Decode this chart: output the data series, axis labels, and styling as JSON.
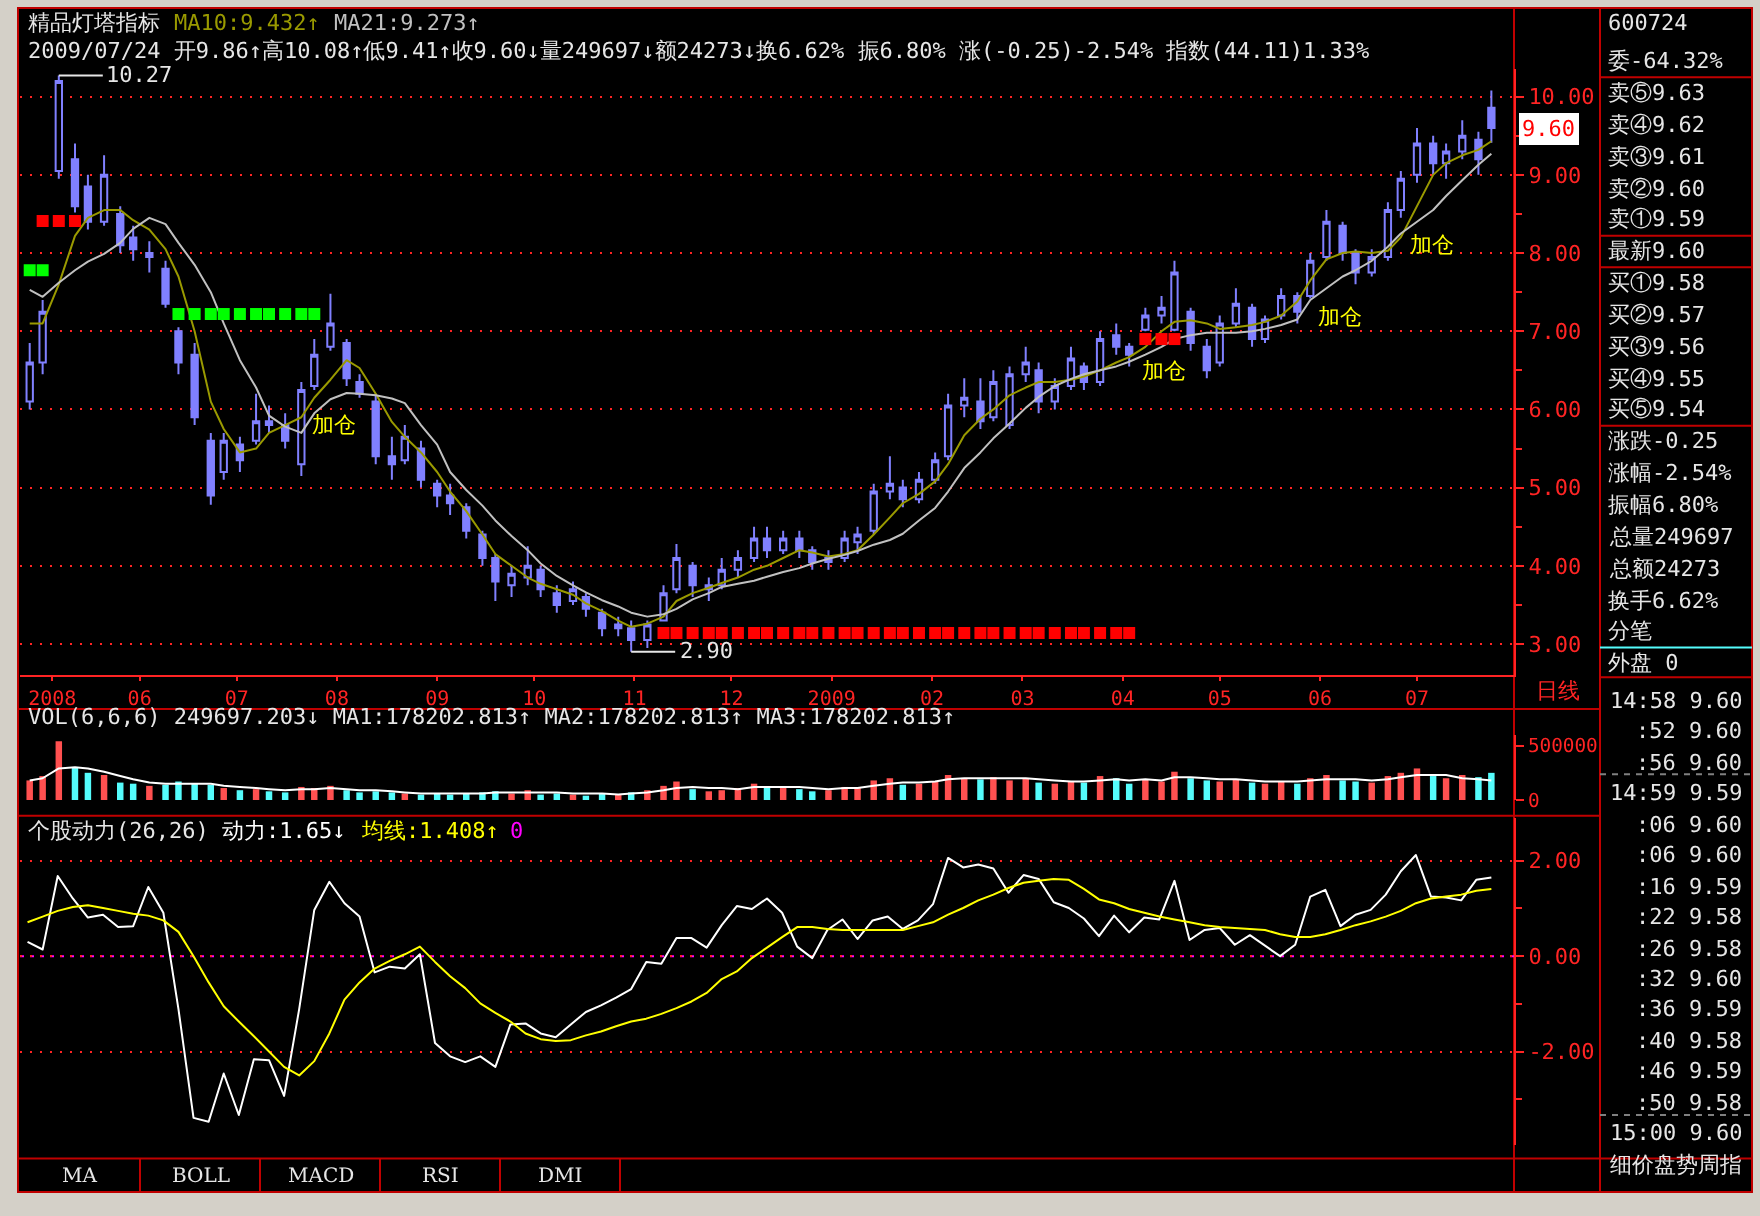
{
  "chart_data": [
    {
      "type": "candlestick",
      "title": "精品灯塔指标",
      "subtitle": "2009/07/24 开9.86↑高10.08↑低9.41↑收9.60↓量249697↓额24273↓换6.62% 振6.80% 涨(-0.25)-2.54% 指数(44.11)1.33%",
      "x": [
        "2008-04-28",
        "2008-05-02",
        "2008-05-07",
        "2008-05-12",
        "2008-05-16",
        "2008-05-21",
        "2008-05-26",
        "2008-05-30",
        "2008-06-04",
        "2008-06-09",
        "2008-06-13",
        "2008-06-18",
        "2008-06-23",
        "2008-06-27",
        "2008-07-02",
        "2008-07-07",
        "2008-07-11",
        "2008-07-16",
        "2008-07-21",
        "2008-07-25",
        "2008-07-30",
        "2008-08-04",
        "2008-08-08",
        "2008-08-13",
        "2008-08-18",
        "2008-08-22",
        "2008-08-27",
        "2008-09-01",
        "2008-09-05",
        "2008-09-10",
        "2008-09-15",
        "2008-09-19",
        "2008-09-24",
        "2008-09-29",
        "2008-10-03",
        "2008-10-08",
        "2008-10-13",
        "2008-10-17",
        "2008-10-22",
        "2008-10-27",
        "2008-10-31",
        "2008-11-05",
        "2008-11-10",
        "2008-11-14",
        "2008-11-19",
        "2008-11-24",
        "2008-11-28",
        "2008-12-03",
        "2008-12-08",
        "2008-12-12",
        "2008-12-17",
        "2008-12-22",
        "2008-12-26",
        "2008-12-31",
        "2009-01-05",
        "2009-01-09",
        "2009-01-14",
        "2009-01-19",
        "2009-01-23",
        "2009-01-28",
        "2009-02-02",
        "2009-02-06",
        "2009-02-11",
        "2009-02-16",
        "2009-02-20",
        "2009-02-25",
        "2009-03-02",
        "2009-03-06",
        "2009-03-11",
        "2009-03-16",
        "2009-03-20",
        "2009-03-25",
        "2009-03-30",
        "2009-04-03",
        "2009-04-08",
        "2009-04-13",
        "2009-04-17",
        "2009-04-22",
        "2009-04-27",
        "2009-05-01",
        "2009-05-06",
        "2009-05-11",
        "2009-05-15",
        "2009-05-20",
        "2009-05-25",
        "2009-05-29",
        "2009-06-03",
        "2009-06-08",
        "2009-06-12",
        "2009-06-17",
        "2009-06-22",
        "2009-06-26",
        "2009-07-01",
        "2009-07-06",
        "2009-07-10",
        "2009-07-15",
        "2009-07-20",
        "2009-07-24"
      ],
      "ohlc": [
        [
          6.1,
          6.85,
          6.0,
          6.6
        ],
        [
          6.6,
          7.4,
          6.45,
          7.25
        ],
        [
          9.05,
          10.27,
          8.95,
          10.2
        ],
        [
          9.2,
          9.4,
          8.52,
          8.6
        ],
        [
          8.85,
          9.0,
          8.3,
          8.4
        ],
        [
          8.4,
          9.25,
          8.35,
          9.0
        ],
        [
          8.5,
          8.6,
          8.0,
          8.1
        ],
        [
          8.2,
          8.35,
          7.9,
          8.05
        ],
        [
          7.95,
          8.15,
          7.75,
          8.0
        ],
        [
          7.8,
          7.9,
          7.3,
          7.35
        ],
        [
          7.0,
          7.05,
          6.45,
          6.6
        ],
        [
          6.7,
          6.85,
          5.8,
          5.9
        ],
        [
          5.6,
          5.7,
          4.78,
          4.9
        ],
        [
          5.2,
          5.7,
          5.1,
          5.6
        ],
        [
          5.55,
          5.65,
          5.2,
          5.35
        ],
        [
          5.6,
          6.2,
          5.55,
          5.85
        ],
        [
          5.85,
          6.05,
          5.7,
          5.8
        ],
        [
          5.8,
          5.95,
          5.5,
          5.6
        ],
        [
          5.3,
          6.35,
          5.15,
          6.25
        ],
        [
          6.3,
          6.9,
          6.25,
          6.7
        ],
        [
          6.8,
          7.48,
          6.75,
          7.1
        ],
        [
          6.85,
          6.9,
          6.3,
          6.4
        ],
        [
          6.35,
          6.45,
          6.15,
          6.2
        ],
        [
          6.1,
          6.2,
          5.3,
          5.4
        ],
        [
          5.4,
          5.65,
          5.1,
          5.3
        ],
        [
          5.35,
          5.8,
          5.3,
          5.65
        ],
        [
          5.5,
          5.6,
          5.0,
          5.1
        ],
        [
          5.05,
          5.1,
          4.75,
          4.9
        ],
        [
          4.9,
          5.05,
          4.65,
          4.8
        ],
        [
          4.75,
          4.8,
          4.35,
          4.45
        ],
        [
          4.4,
          4.45,
          4.0,
          4.1
        ],
        [
          4.1,
          4.15,
          3.55,
          3.8
        ],
        [
          3.75,
          4.0,
          3.6,
          3.9
        ],
        [
          3.85,
          4.25,
          3.75,
          4.0
        ],
        [
          3.95,
          4.0,
          3.6,
          3.7
        ],
        [
          3.65,
          3.75,
          3.4,
          3.5
        ],
        [
          3.55,
          3.8,
          3.5,
          3.7
        ],
        [
          3.6,
          3.65,
          3.35,
          3.45
        ],
        [
          3.4,
          3.45,
          3.1,
          3.2
        ],
        [
          3.2,
          3.35,
          3.1,
          3.25
        ],
        [
          3.2,
          3.3,
          2.9,
          3.05
        ],
        [
          3.05,
          3.3,
          2.95,
          3.25
        ],
        [
          3.3,
          3.75,
          3.3,
          3.65
        ],
        [
          3.7,
          4.28,
          3.65,
          4.1
        ],
        [
          4.0,
          4.05,
          3.6,
          3.75
        ],
        [
          3.7,
          3.85,
          3.55,
          3.75
        ],
        [
          3.75,
          4.1,
          3.7,
          3.95
        ],
        [
          3.95,
          4.2,
          3.85,
          4.1
        ],
        [
          4.1,
          4.5,
          4.05,
          4.35
        ],
        [
          4.35,
          4.5,
          4.1,
          4.2
        ],
        [
          4.2,
          4.45,
          4.15,
          4.35
        ],
        [
          4.35,
          4.45,
          4.1,
          4.2
        ],
        [
          4.2,
          4.25,
          3.95,
          4.05
        ],
        [
          4.05,
          4.2,
          3.95,
          4.1
        ],
        [
          4.1,
          4.45,
          4.05,
          4.35
        ],
        [
          4.3,
          4.5,
          4.15,
          4.4
        ],
        [
          4.45,
          5.05,
          4.4,
          4.95
        ],
        [
          4.95,
          5.4,
          4.85,
          5.05
        ],
        [
          5.0,
          5.1,
          4.75,
          4.85
        ],
        [
          4.85,
          5.2,
          4.8,
          5.1
        ],
        [
          5.1,
          5.45,
          5.05,
          5.35
        ],
        [
          5.4,
          6.2,
          5.35,
          6.05
        ],
        [
          6.05,
          6.4,
          5.9,
          6.15
        ],
        [
          6.1,
          6.4,
          5.75,
          5.85
        ],
        [
          5.9,
          6.5,
          5.85,
          6.35
        ],
        [
          5.8,
          6.55,
          5.75,
          6.45
        ],
        [
          6.45,
          6.8,
          6.35,
          6.6
        ],
        [
          6.5,
          6.6,
          5.95,
          6.1
        ],
        [
          6.1,
          6.4,
          6.0,
          6.3
        ],
        [
          6.3,
          6.8,
          6.25,
          6.65
        ],
        [
          6.55,
          6.6,
          6.25,
          6.35
        ],
        [
          6.35,
          7.0,
          6.3,
          6.9
        ],
        [
          6.95,
          7.1,
          6.7,
          6.8
        ],
        [
          6.8,
          6.85,
          6.55,
          6.7
        ],
        [
          7.02,
          7.3,
          7.0,
          7.2
        ],
        [
          7.2,
          7.45,
          7.1,
          7.3
        ],
        [
          7.02,
          7.9,
          7.0,
          7.75
        ],
        [
          7.25,
          7.3,
          6.75,
          6.85
        ],
        [
          6.8,
          6.9,
          6.4,
          6.5
        ],
        [
          6.6,
          7.2,
          6.55,
          7.1
        ],
        [
          7.1,
          7.55,
          7.05,
          7.35
        ],
        [
          7.3,
          7.35,
          6.8,
          6.9
        ],
        [
          6.9,
          7.2,
          6.85,
          7.15
        ],
        [
          7.2,
          7.55,
          7.15,
          7.45
        ],
        [
          7.45,
          7.5,
          7.1,
          7.25
        ],
        [
          7.45,
          8.0,
          7.42,
          7.9
        ],
        [
          7.95,
          8.55,
          7.9,
          8.4
        ],
        [
          8.35,
          8.4,
          7.9,
          8.0
        ],
        [
          8.0,
          8.05,
          7.6,
          7.75
        ],
        [
          7.75,
          8.05,
          7.7,
          7.95
        ],
        [
          7.95,
          8.65,
          7.9,
          8.55
        ],
        [
          8.55,
          9.05,
          8.45,
          8.95
        ],
        [
          9.0,
          9.6,
          8.9,
          9.4
        ],
        [
          9.4,
          9.5,
          9.0,
          9.15
        ],
        [
          9.15,
          9.4,
          8.95,
          9.3
        ],
        [
          9.3,
          9.7,
          9.2,
          9.5
        ],
        [
          9.45,
          9.55,
          9.0,
          9.2
        ],
        [
          9.86,
          10.08,
          9.41,
          9.6
        ]
      ],
      "color": "#8080ff",
      "series": [
        {
          "name": "MA10:9.432↑",
          "type": "line",
          "color": "#9a9a00",
          "values": [
            7.1,
            7.1,
            7.6,
            8.22,
            8.45,
            8.55,
            8.55,
            8.42,
            8.3,
            8.05,
            7.7,
            7.0,
            6.1,
            5.75,
            5.45,
            5.5,
            5.7,
            5.8,
            5.9,
            6.15,
            6.38,
            6.63,
            6.53,
            6.2,
            5.84,
            5.65,
            5.45,
            5.2,
            4.95,
            4.7,
            4.4,
            4.15,
            4.0,
            3.85,
            3.77,
            3.7,
            3.63,
            3.52,
            3.42,
            3.3,
            3.22,
            3.26,
            3.35,
            3.55,
            3.65,
            3.72,
            3.78,
            3.85,
            3.95,
            4.0,
            4.1,
            4.2,
            4.17,
            4.12,
            4.15,
            4.2,
            4.4,
            4.62,
            4.8,
            4.92,
            5.08,
            5.3,
            5.67,
            5.88,
            6.0,
            6.18,
            6.28,
            6.35,
            6.35,
            6.38,
            6.42,
            6.5,
            6.6,
            6.67,
            6.8,
            7.0,
            7.12,
            7.14,
            7.1,
            7.03,
            7.05,
            7.08,
            7.12,
            7.2,
            7.38,
            7.65,
            7.92,
            8.0,
            8.02,
            8.0,
            8.03,
            8.2,
            8.6,
            9.0,
            9.15,
            9.25,
            9.32,
            9.43
          ]
        },
        {
          "name": "MA21:9.273↑",
          "type": "line",
          "color": "#c0c0c0",
          "values": [
            7.53,
            7.44,
            7.62,
            7.78,
            7.89,
            7.99,
            8.13,
            8.31,
            8.45,
            8.37,
            8.13,
            7.85,
            7.5,
            7.1,
            6.63,
            6.28,
            5.92,
            5.78,
            5.7,
            5.95,
            6.13,
            6.21,
            6.2,
            6.18,
            6.14,
            6.08,
            5.8,
            5.55,
            5.2,
            4.97,
            4.77,
            4.58,
            4.38,
            4.2,
            4.03,
            3.87,
            3.75,
            3.66,
            3.56,
            3.48,
            3.4,
            3.35,
            3.38,
            3.45,
            3.57,
            3.65,
            3.73,
            3.77,
            3.81,
            3.86,
            3.92,
            3.97,
            4.03,
            4.09,
            4.14,
            4.19,
            4.27,
            4.33,
            4.41,
            4.58,
            4.74,
            4.95,
            5.25,
            5.45,
            5.63,
            5.82,
            6.02,
            6.16,
            6.3,
            6.39,
            6.45,
            6.5,
            6.55,
            6.61,
            6.7,
            6.8,
            6.9,
            6.95,
            6.98,
            6.98,
            6.98,
            7.0,
            7.03,
            7.08,
            7.15,
            7.4,
            7.55,
            7.7,
            7.78,
            7.9,
            8.08,
            8.25,
            8.4,
            8.55,
            8.73,
            8.93,
            9.13,
            9.27
          ]
        },
        {
          "type": "scatter",
          "marker": "square",
          "color": "#00ff00",
          "x": [
            "2008-04-28",
            "2008-05-02"
          ],
          "values": [
            7.78,
            7.78
          ]
        },
        {
          "type": "scatter",
          "marker": "square",
          "color": "#ff0000",
          "x": [
            "2008-05-02",
            "2008-05-07",
            "2008-05-12"
          ],
          "values": [
            8.41,
            8.41,
            8.41
          ]
        },
        {
          "type": "scatter",
          "marker": "square",
          "color": "#00ff00",
          "x": [
            "2008-06-13",
            "2008-06-18",
            "2008-06-23",
            "2008-06-27",
            "2008-07-02",
            "2008-07-07",
            "2008-07-11",
            "2008-07-16",
            "2008-07-21",
            "2008-07-25"
          ],
          "values": [
            7.22,
            7.22,
            7.22,
            7.22,
            7.22,
            7.22,
            7.22,
            7.22,
            7.22,
            7.22
          ]
        },
        {
          "type": "scatter",
          "marker": "square",
          "color": "#ff0000",
          "x": [
            "2008-11-10",
            "2008-11-14",
            "2008-11-19",
            "2008-11-24",
            "2008-11-28",
            "2008-12-03",
            "2008-12-08",
            "2008-12-12",
            "2008-12-17",
            "2008-12-22",
            "2008-12-26",
            "2008-12-31",
            "2009-01-05",
            "2009-01-09",
            "2009-01-14",
            "2009-01-19",
            "2009-01-23",
            "2009-01-28",
            "2009-02-02",
            "2009-02-06",
            "2009-02-11",
            "2009-02-16",
            "2009-02-20",
            "2009-02-25",
            "2009-03-02",
            "2009-03-06",
            "2009-03-11",
            "2009-03-16",
            "2009-03-20",
            "2009-03-25",
            "2009-03-30",
            "2009-04-03"
          ],
          "values": [
            3.14,
            3.14,
            3.14,
            3.14,
            3.14,
            3.14,
            3.14,
            3.14,
            3.14,
            3.14,
            3.14,
            3.14,
            3.14,
            3.14,
            3.14,
            3.14,
            3.14,
            3.14,
            3.14,
            3.14,
            3.14,
            3.14,
            3.14,
            3.14,
            3.14,
            3.14,
            3.14,
            3.14,
            3.14,
            3.14,
            3.14,
            3.14
          ]
        },
        {
          "type": "scatter",
          "marker": "square",
          "color": "#ff0000",
          "x": [
            "2009-04-08",
            "2009-04-13",
            "2009-04-17"
          ],
          "values": [
            6.9,
            6.9,
            6.9
          ]
        }
      ],
      "xlim": [
        "2008-04-25",
        "2009-07-31"
      ],
      "xticks": [
        {
          "value": "2008-05-05",
          "label": "2008"
        },
        {
          "value": "2008-06-01",
          "label": "06"
        },
        {
          "value": "2008-07-01",
          "label": "07"
        },
        {
          "value": "2008-08-01",
          "label": "08"
        },
        {
          "value": "2008-09-01",
          "label": "09"
        },
        {
          "value": "2008-10-01",
          "label": "10"
        },
        {
          "value": "2008-11-01",
          "label": "11"
        },
        {
          "value": "2008-12-01",
          "label": "12"
        },
        {
          "value": "2009-01-01",
          "label": "2009"
        },
        {
          "value": "2009-02-01",
          "label": "02"
        },
        {
          "value": "2009-03-01",
          "label": "03"
        },
        {
          "value": "2009-04-01",
          "label": "04"
        },
        {
          "value": "2009-05-01",
          "label": "05"
        },
        {
          "value": "2009-06-01",
          "label": "06"
        },
        {
          "value": "2009-07-01",
          "label": "07"
        }
      ],
      "ylim": [
        2.6,
        10.35
      ],
      "yticks": [
        {
          "value": 3,
          "label": "3.00"
        },
        {
          "value": 3.5,
          "label": null
        },
        {
          "value": 4,
          "label": "4.00"
        },
        {
          "value": 4.5,
          "label": null
        },
        {
          "value": 5,
          "label": "5.00"
        },
        {
          "value": 5.5,
          "label": null
        },
        {
          "value": 6,
          "label": "6.00"
        },
        {
          "value": 6.5,
          "label": null
        },
        {
          "value": 7,
          "label": "7.00"
        },
        {
          "value": 7.5,
          "label": null
        },
        {
          "value": 8,
          "label": "8.00"
        },
        {
          "value": 8.5,
          "label": null
        },
        {
          "value": 9,
          "label": "9.00"
        },
        {
          "value": 9.5,
          "label": null
        },
        {
          "value": 10,
          "label": "10.00"
        }
      ],
      "grid": "y",
      "annotations": [
        {
          "text": "10.27",
          "x": "2008-05-07",
          "y": 10.27
        },
        {
          "text": "2.90",
          "x": "2008-10-31",
          "y": 2.9
        },
        "9.60",
        "加仓",
        "加仓",
        "加仓",
        "加仓",
        "日线"
      ]
    },
    {
      "type": "bar",
      "title": "VOL(6,6,6) 249697.203↓ MA1:178202.813↑ MA2:178202.813↑ MA3:178202.813↑",
      "x": [
        "2008-04-28",
        "2008-05-02",
        "2008-05-07",
        "2008-05-12",
        "2008-05-16",
        "2008-05-21",
        "2008-05-26",
        "2008-05-30",
        "2008-06-04",
        "2008-06-09",
        "2008-06-13",
        "2008-06-18",
        "2008-06-23",
        "2008-06-27",
        "2008-07-02",
        "2008-07-07",
        "2008-07-11",
        "2008-07-16",
        "2008-07-21",
        "2008-07-25",
        "2008-07-30",
        "2008-08-04",
        "2008-08-08",
        "2008-08-13",
        "2008-08-18",
        "2008-08-22",
        "2008-08-27",
        "2008-09-01",
        "2008-09-05",
        "2008-09-10",
        "2008-09-15",
        "2008-09-19",
        "2008-09-24",
        "2008-09-29",
        "2008-10-03",
        "2008-10-08",
        "2008-10-13",
        "2008-10-17",
        "2008-10-22",
        "2008-10-27",
        "2008-10-31",
        "2008-11-05",
        "2008-11-10",
        "2008-11-14",
        "2008-11-19",
        "2008-11-24",
        "2008-11-28",
        "2008-12-03",
        "2008-12-08",
        "2008-12-12",
        "2008-12-17",
        "2008-12-22",
        "2008-12-26",
        "2008-12-31",
        "2009-01-05",
        "2009-01-09",
        "2009-01-14",
        "2009-01-19",
        "2009-01-23",
        "2009-01-28",
        "2009-02-02",
        "2009-02-06",
        "2009-02-11",
        "2009-02-16",
        "2009-02-20",
        "2009-02-25",
        "2009-03-02",
        "2009-03-06",
        "2009-03-11",
        "2009-03-16",
        "2009-03-20",
        "2009-03-25",
        "2009-03-30",
        "2009-04-03",
        "2009-04-08",
        "2009-04-13",
        "2009-04-17",
        "2009-04-22",
        "2009-04-27",
        "2009-05-01",
        "2009-05-06",
        "2009-05-11",
        "2009-05-15",
        "2009-05-20",
        "2009-05-25",
        "2009-05-29",
        "2009-06-03",
        "2009-06-08",
        "2009-06-12",
        "2009-06-17",
        "2009-06-22",
        "2009-06-26",
        "2009-07-01",
        "2009-07-06",
        "2009-07-10",
        "2009-07-15",
        "2009-07-20",
        "2009-07-24"
      ],
      "series": [
        {
          "type": "bar",
          "colors": [
            "#ff5050",
            "#ff5050",
            "#ff5050",
            "#54fcfc",
            "#54fcfc",
            "#ff5050",
            "#54fcfc",
            "#54fcfc",
            "#ff5050",
            "#54fcfc",
            "#54fcfc",
            "#54fcfc",
            "#54fcfc",
            "#ff5050",
            "#54fcfc",
            "#ff5050",
            "#54fcfc",
            "#54fcfc",
            "#ff5050",
            "#ff5050",
            "#ff5050",
            "#54fcfc",
            "#54fcfc",
            "#54fcfc",
            "#54fcfc",
            "#ff5050",
            "#54fcfc",
            "#54fcfc",
            "#54fcfc",
            "#54fcfc",
            "#54fcfc",
            "#54fcfc",
            "#ff5050",
            "#ff5050",
            "#54fcfc",
            "#54fcfc",
            "#ff5050",
            "#54fcfc",
            "#54fcfc",
            "#ff5050",
            "#54fcfc",
            "#ff5050",
            "#ff5050",
            "#ff5050",
            "#54fcfc",
            "#ff5050",
            "#ff5050",
            "#ff5050",
            "#ff5050",
            "#54fcfc",
            "#ff5050",
            "#54fcfc",
            "#54fcfc",
            "#ff5050",
            "#ff5050",
            "#ff5050",
            "#ff5050",
            "#ff5050",
            "#54fcfc",
            "#ff5050",
            "#ff5050",
            "#ff5050",
            "#ff5050",
            "#54fcfc",
            "#ff5050",
            "#ff5050",
            "#ff5050",
            "#54fcfc",
            "#ff5050",
            "#ff5050",
            "#54fcfc",
            "#ff5050",
            "#54fcfc",
            "#54fcfc",
            "#ff5050",
            "#ff5050",
            "#ff5050",
            "#54fcfc",
            "#54fcfc",
            "#ff5050",
            "#ff5050",
            "#54fcfc",
            "#ff5050",
            "#ff5050",
            "#54fcfc",
            "#ff5050",
            "#ff5050",
            "#54fcfc",
            "#54fcfc",
            "#ff5050",
            "#ff5050",
            "#ff5050",
            "#ff5050",
            "#54fcfc",
            "#ff5050",
            "#ff5050",
            "#54fcfc",
            "#54fcfc"
          ],
          "values": [
            180000,
            220000,
            540000,
            300000,
            250000,
            230000,
            160000,
            150000,
            130000,
            140000,
            170000,
            150000,
            140000,
            110000,
            90000,
            100000,
            80000,
            70000,
            120000,
            110000,
            130000,
            90000,
            70000,
            80000,
            70000,
            60000,
            50000,
            60000,
            50000,
            60000,
            70000,
            80000,
            60000,
            90000,
            50000,
            60000,
            50000,
            40000,
            60000,
            50000,
            70000,
            90000,
            130000,
            170000,
            100000,
            80000,
            90000,
            110000,
            150000,
            120000,
            110000,
            100000,
            80000,
            90000,
            120000,
            110000,
            180000,
            200000,
            140000,
            150000,
            170000,
            230000,
            200000,
            190000,
            210000,
            180000,
            200000,
            160000,
            150000,
            170000,
            160000,
            220000,
            200000,
            150000,
            190000,
            170000,
            260000,
            200000,
            180000,
            170000,
            190000,
            160000,
            150000,
            170000,
            150000,
            200000,
            230000,
            180000,
            170000,
            160000,
            220000,
            250000,
            290000,
            220000,
            200000,
            230000,
            210000,
            249697
          ]
        },
        {
          "type": "line",
          "color": "#ffffff",
          "values": [
            180000,
            200000,
            290000,
            300000,
            290000,
            260000,
            220000,
            190000,
            160000,
            150000,
            150000,
            150000,
            150000,
            130000,
            120000,
            110000,
            100000,
            90000,
            100000,
            100000,
            110000,
            100000,
            90000,
            90000,
            80000,
            70000,
            60000,
            60000,
            60000,
            60000,
            60000,
            70000,
            70000,
            70000,
            70000,
            70000,
            60000,
            60000,
            60000,
            50000,
            60000,
            70000,
            90000,
            110000,
            120000,
            110000,
            110000,
            100000,
            120000,
            120000,
            120000,
            120000,
            110000,
            100000,
            110000,
            110000,
            130000,
            150000,
            160000,
            160000,
            170000,
            190000,
            200000,
            200000,
            200000,
            200000,
            200000,
            190000,
            180000,
            170000,
            170000,
            180000,
            190000,
            180000,
            190000,
            180000,
            210000,
            210000,
            200000,
            190000,
            190000,
            180000,
            170000,
            170000,
            170000,
            180000,
            190000,
            190000,
            190000,
            180000,
            190000,
            210000,
            230000,
            230000,
            230000,
            200000,
            190000,
            178203
          ]
        }
      ],
      "xlim": [
        "2008-04-25",
        "2009-07-31"
      ],
      "ylim": [
        0,
        600000
      ],
      "yticks": [
        0,
        500000
      ],
      "tick_labels": "y"
    },
    {
      "type": "line",
      "title": "个股动力(26,26)",
      "categories": [
        null,
        null,
        null,
        null,
        null,
        null,
        null,
        null,
        null,
        null,
        null,
        null,
        null,
        null,
        null,
        null,
        null,
        null,
        null,
        null,
        null,
        null,
        null,
        null,
        null,
        null,
        null,
        null,
        null,
        null,
        null,
        null,
        null,
        null,
        null,
        null,
        null,
        null,
        null,
        null,
        null,
        null,
        null,
        null,
        null,
        null,
        null,
        null,
        null,
        null,
        null,
        null,
        null,
        null,
        null,
        null,
        null,
        null,
        null,
        null,
        null,
        null,
        null,
        null,
        null,
        null,
        null,
        null,
        null,
        null,
        null,
        null,
        null,
        null,
        null,
        null,
        null,
        null,
        null,
        null,
        null,
        null,
        null,
        null,
        null,
        null,
        null,
        null,
        null,
        null,
        null,
        null,
        null,
        null,
        null,
        null,
        null,
        null
      ],
      "series": [
        {
          "name": "动力:1.65↓",
          "color": "#ffffff",
          "values": [
            0.3,
            0.14,
            1.68,
            1.21,
            0.81,
            0.87,
            0.61,
            0.63,
            1.45,
            0.91,
            -1.11,
            -3.39,
            -3.47,
            -2.46,
            -3.33,
            -2.16,
            -2.18,
            -2.93,
            -1.11,
            0.97,
            1.56,
            1.11,
            0.83,
            -0.34,
            -0.22,
            -0.26,
            0.04,
            -1.82,
            -2.1,
            -2.22,
            -2.1,
            -2.32,
            -1.43,
            -1.41,
            -1.62,
            -1.7,
            -1.43,
            -1.17,
            -1.03,
            -0.87,
            -0.69,
            -0.12,
            -0.16,
            0.38,
            0.38,
            0.18,
            0.65,
            1.05,
            0.99,
            1.21,
            0.91,
            0.2,
            -0.04,
            0.55,
            0.77,
            0.36,
            0.75,
            0.83,
            0.57,
            0.75,
            1.09,
            2.06,
            1.86,
            1.92,
            1.84,
            1.33,
            1.7,
            1.62,
            1.13,
            1.01,
            0.79,
            0.42,
            0.85,
            0.5,
            0.81,
            0.77,
            1.58,
            0.34,
            0.55,
            0.59,
            0.24,
            0.44,
            0.22,
            0.0,
            0.24,
            1.25,
            1.39,
            0.63,
            0.87,
            0.97,
            1.29,
            1.78,
            2.12,
            1.25,
            1.23,
            1.17,
            1.6,
            1.65
          ]
        },
        {
          "name": "均线:1.408↑",
          "color": "#ffff00",
          "values": [
            0.71,
            0.83,
            0.95,
            1.03,
            1.07,
            1.01,
            0.95,
            0.89,
            0.85,
            0.75,
            0.51,
            0.0,
            -0.55,
            -1.05,
            -1.37,
            -1.68,
            -2.0,
            -2.32,
            -2.5,
            -2.2,
            -1.62,
            -0.91,
            -0.55,
            -0.26,
            -0.1,
            0.04,
            0.2,
            -0.12,
            -0.42,
            -0.67,
            -0.99,
            -1.19,
            -1.37,
            -1.62,
            -1.74,
            -1.78,
            -1.76,
            -1.66,
            -1.58,
            -1.47,
            -1.37,
            -1.31,
            -1.21,
            -1.09,
            -0.95,
            -0.77,
            -0.48,
            -0.32,
            -0.04,
            0.18,
            0.4,
            0.61,
            0.61,
            0.57,
            0.55,
            0.55,
            0.55,
            0.55,
            0.55,
            0.63,
            0.71,
            0.87,
            1.01,
            1.17,
            1.29,
            1.43,
            1.54,
            1.58,
            1.62,
            1.6,
            1.41,
            1.19,
            1.11,
            0.99,
            0.91,
            0.83,
            0.77,
            0.71,
            0.65,
            0.61,
            0.59,
            0.57,
            0.55,
            0.46,
            0.4,
            0.4,
            0.46,
            0.55,
            0.65,
            0.73,
            0.83,
            0.95,
            1.11,
            1.21,
            1.25,
            1.29,
            1.37,
            1.41
          ]
        }
      ],
      "ref_lines": [
        {
          "axis": "y",
          "value": 0,
          "label": "0",
          "color": "#ff00ff",
          "line_style": "dotted"
        }
      ],
      "ylim": [
        -3.95,
        2.9
      ],
      "yticks": [
        {
          "value": -3,
          "label": null
        },
        {
          "value": -2,
          "label": "-2.00"
        },
        {
          "value": -1,
          "label": null
        },
        {
          "value": 0,
          "label": "0.00"
        },
        {
          "value": 1,
          "label": null
        },
        {
          "value": 2,
          "label": "2.00"
        }
      ],
      "grid": "y",
      "tick_labels": "y"
    },
    {
      "type": "other",
      "annotations": [
        "MA",
        "BOLL",
        "MACD",
        "RSI",
        "DMI"
      ]
    },
    {
      "type": "other",
      "title": "600724",
      "annotations": [
        "委-64.32%",
        "卖⑤9.63",
        "卖④9.62",
        "卖③9.61",
        "卖②9.60",
        "卖①9.59",
        "最新9.60",
        "买①9.58",
        "买②9.57",
        "买③9.56",
        "买④9.55",
        "买⑤9.54",
        "涨跌-0.25",
        "涨幅-2.54%",
        "振幅6.80%",
        "总量249697",
        "总额24273",
        "换手6.62%",
        "分笔",
        "外盘 0"
      ]
    },
    {
      "type": "other",
      "annotations": [
        "14:58 9.60",
        ":52 9.60",
        ":56 9.60",
        "14:59 9.59",
        ":06 9.60",
        ":06 9.60",
        ":16 9.59",
        ":22 9.58",
        ":26 9.58",
        ":32 9.60",
        ":36 9.59",
        ":40 9.58",
        ":46 9.59",
        ":50 9.58",
        "15:00 9.60",
        "细价盘势周指"
      ]
    }
  ]
}
